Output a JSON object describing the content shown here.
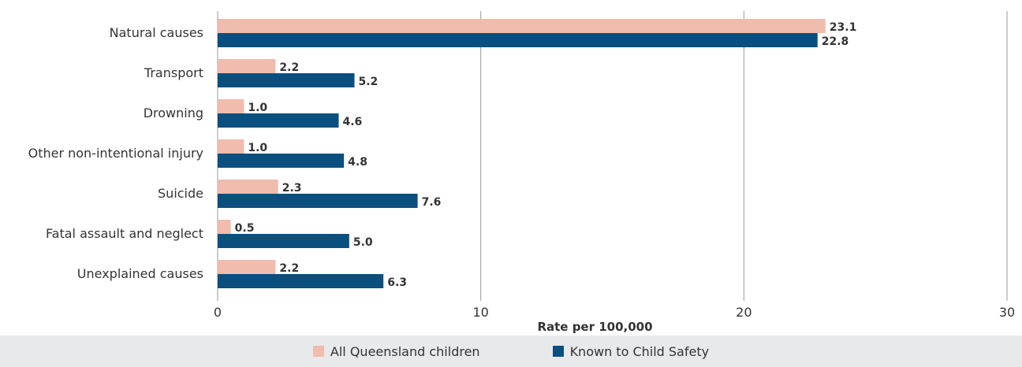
{
  "chart_data": {
    "type": "bar",
    "orientation": "horizontal",
    "categories": [
      "Natural causes",
      "Transport",
      "Drowning",
      "Other non-intentional injury",
      "Suicide",
      "Fatal assault and neglect",
      "Unexplained causes"
    ],
    "series": [
      {
        "name": "All Queensland children",
        "values": [
          23.1,
          2.2,
          1.0,
          1.0,
          2.3,
          0.5,
          2.2
        ],
        "color": "#efbcae"
      },
      {
        "name": "Known to Child Safety",
        "values": [
          22.8,
          5.2,
          4.6,
          4.8,
          7.6,
          5.0,
          6.3
        ],
        "color": "#0b4f7f"
      }
    ],
    "xlabel": "Rate per 100,000",
    "xlim": [
      0,
      30
    ],
    "xticks": [
      0,
      10,
      20,
      30
    ],
    "grid": true,
    "legend_position": "bottom"
  }
}
